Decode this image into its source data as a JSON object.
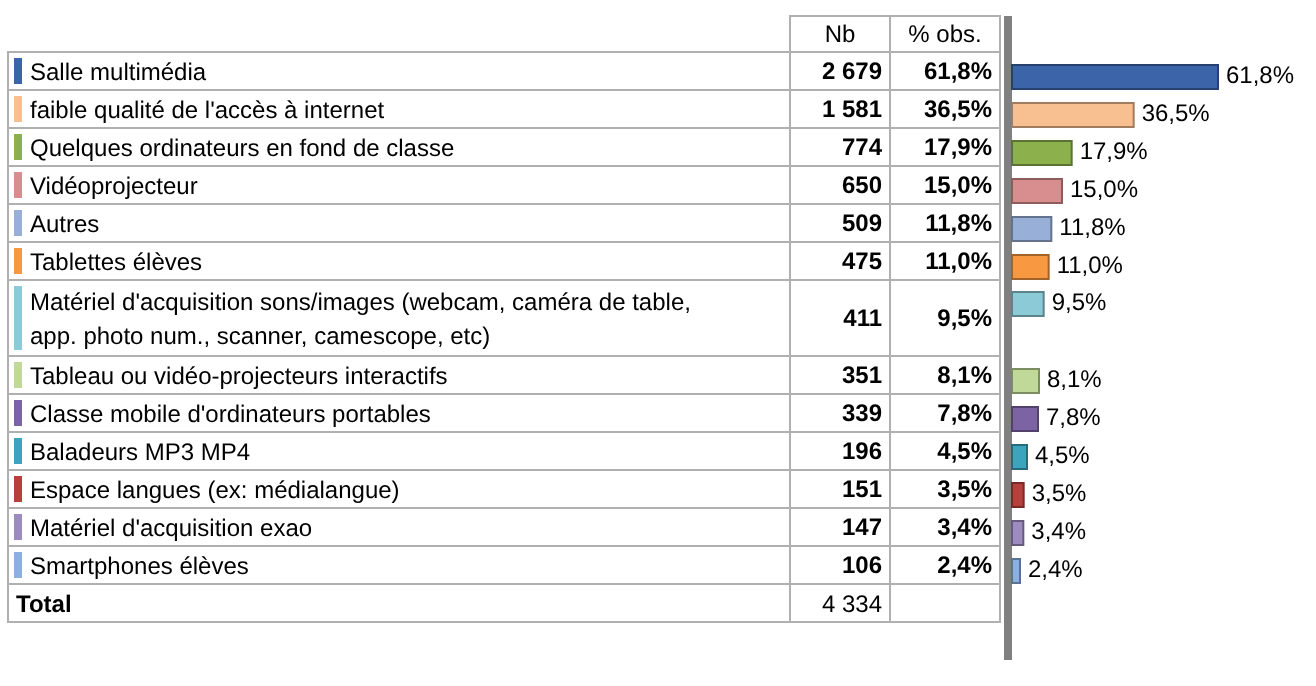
{
  "chart_data": {
    "type": "bar",
    "orientation": "horizontal",
    "categories": [
      "Salle multimédia",
      "faible qualité de l'accès à internet",
      "Quelques ordinateurs en fond de classe",
      "Vidéoprojecteur",
      "Autres",
      "Tablettes élèves",
      "Matériel d'acquisition sons/images (webcam, caméra de table, app. photo num., scanner, camescope, etc)",
      "Tableau ou vidéo-projecteurs interactifs",
      "Classe mobile d'ordinateurs portables",
      "Baladeurs MP3 MP4",
      "Espace langues (ex: médialangue)",
      "Matériel d'acquisition exao",
      "Smartphones élèves"
    ],
    "values": [
      61.8,
      36.5,
      17.9,
      15.0,
      11.8,
      11.0,
      9.5,
      8.1,
      7.8,
      4.5,
      3.5,
      3.4,
      2.4
    ],
    "colors": [
      "#3c64a8",
      "#f8bf90",
      "#8cb04c",
      "#d88e8e",
      "#98b0d8",
      "#f89840",
      "#8ccad8",
      "#c0d898",
      "#7c64a4",
      "#3ca4bc",
      "#b8403c",
      "#9c8cc0",
      "#8cb0e0"
    ],
    "value_labels": [
      "61,8%",
      "36,5%",
      "17,9%",
      "15,0%",
      "11,8%",
      "11,0%",
      "9,5%",
      "8,1%",
      "7,8%",
      "4,5%",
      "3,5%",
      "3,4%",
      "2,4%"
    ],
    "annotations": [
      "Nb",
      "% obs.",
      "2 679",
      "1 581",
      "774",
      "650",
      "509",
      "475",
      "411",
      "351",
      "339",
      "196",
      "151",
      "147",
      "106",
      "Total",
      "4 334"
    ]
  }
}
